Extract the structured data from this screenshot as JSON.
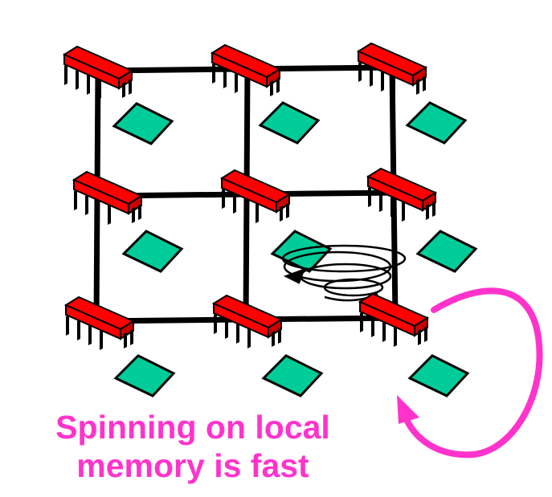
{
  "caption": {
    "line1": "Spinning on local",
    "line2": "memory is fast"
  },
  "colors": {
    "processor": "#ff0000",
    "memory": "#00cc99",
    "interconnect": "#000000",
    "arrow": "#ff33cc",
    "text": "#ff33cc"
  },
  "grid": {
    "rows": 3,
    "cols": 3
  }
}
